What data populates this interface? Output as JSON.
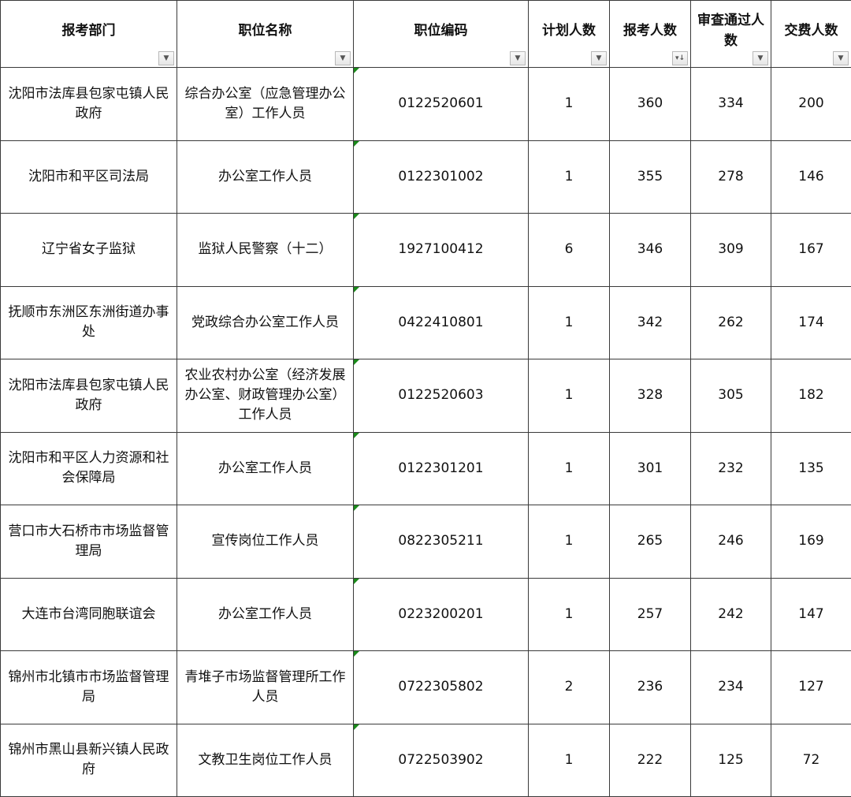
{
  "headers": [
    "报考部门",
    "职位名称",
    "职位编码",
    "计划人数",
    "报考人数",
    "审查通过人数",
    "交费人数"
  ],
  "filter_icons": [
    "dropdown-arrow",
    "dropdown-arrow",
    "dropdown-arrow",
    "dropdown-arrow",
    "sort-descending",
    "dropdown-arrow",
    "dropdown-arrow"
  ],
  "filter_glyphs": [
    "▼",
    "▼",
    "▼",
    "▼",
    "▾↓",
    "▼",
    "▼"
  ],
  "indicator_color": "#1a8a1a",
  "rows": [
    [
      "沈阳市法库县包家屯镇人民政府",
      "综合办公室（应急管理办公室）工作人员",
      "0122520601",
      "1",
      "360",
      "334",
      "200"
    ],
    [
      "沈阳市和平区司法局",
      "办公室工作人员",
      "0122301002",
      "1",
      "355",
      "278",
      "146"
    ],
    [
      "辽宁省女子监狱",
      "监狱人民警察（十二）",
      "1927100412",
      "6",
      "346",
      "309",
      "167"
    ],
    [
      "抚顺市东洲区东洲街道办事处",
      "党政综合办公室工作人员",
      "0422410801",
      "1",
      "342",
      "262",
      "174"
    ],
    [
      "沈阳市法库县包家屯镇人民政府",
      "农业农村办公室（经济发展办公室、财政管理办公室）工作人员",
      "0122520603",
      "1",
      "328",
      "305",
      "182"
    ],
    [
      "沈阳市和平区人力资源和社会保障局",
      "办公室工作人员",
      "0122301201",
      "1",
      "301",
      "232",
      "135"
    ],
    [
      "营口市大石桥市市场监督管理局",
      "宣传岗位工作人员",
      "0822305211",
      "1",
      "265",
      "246",
      "169"
    ],
    [
      "大连市台湾同胞联谊会",
      "办公室工作人员",
      "0223200201",
      "1",
      "257",
      "242",
      "147"
    ],
    [
      "锦州市北镇市市场监督管理局",
      "青堆子市场监督管理所工作人员",
      "0722305802",
      "2",
      "236",
      "234",
      "127"
    ],
    [
      "锦州市黑山县新兴镇人民政府",
      "文教卫生岗位工作人员",
      "0722503902",
      "1",
      "222",
      "125",
      "72"
    ]
  ]
}
